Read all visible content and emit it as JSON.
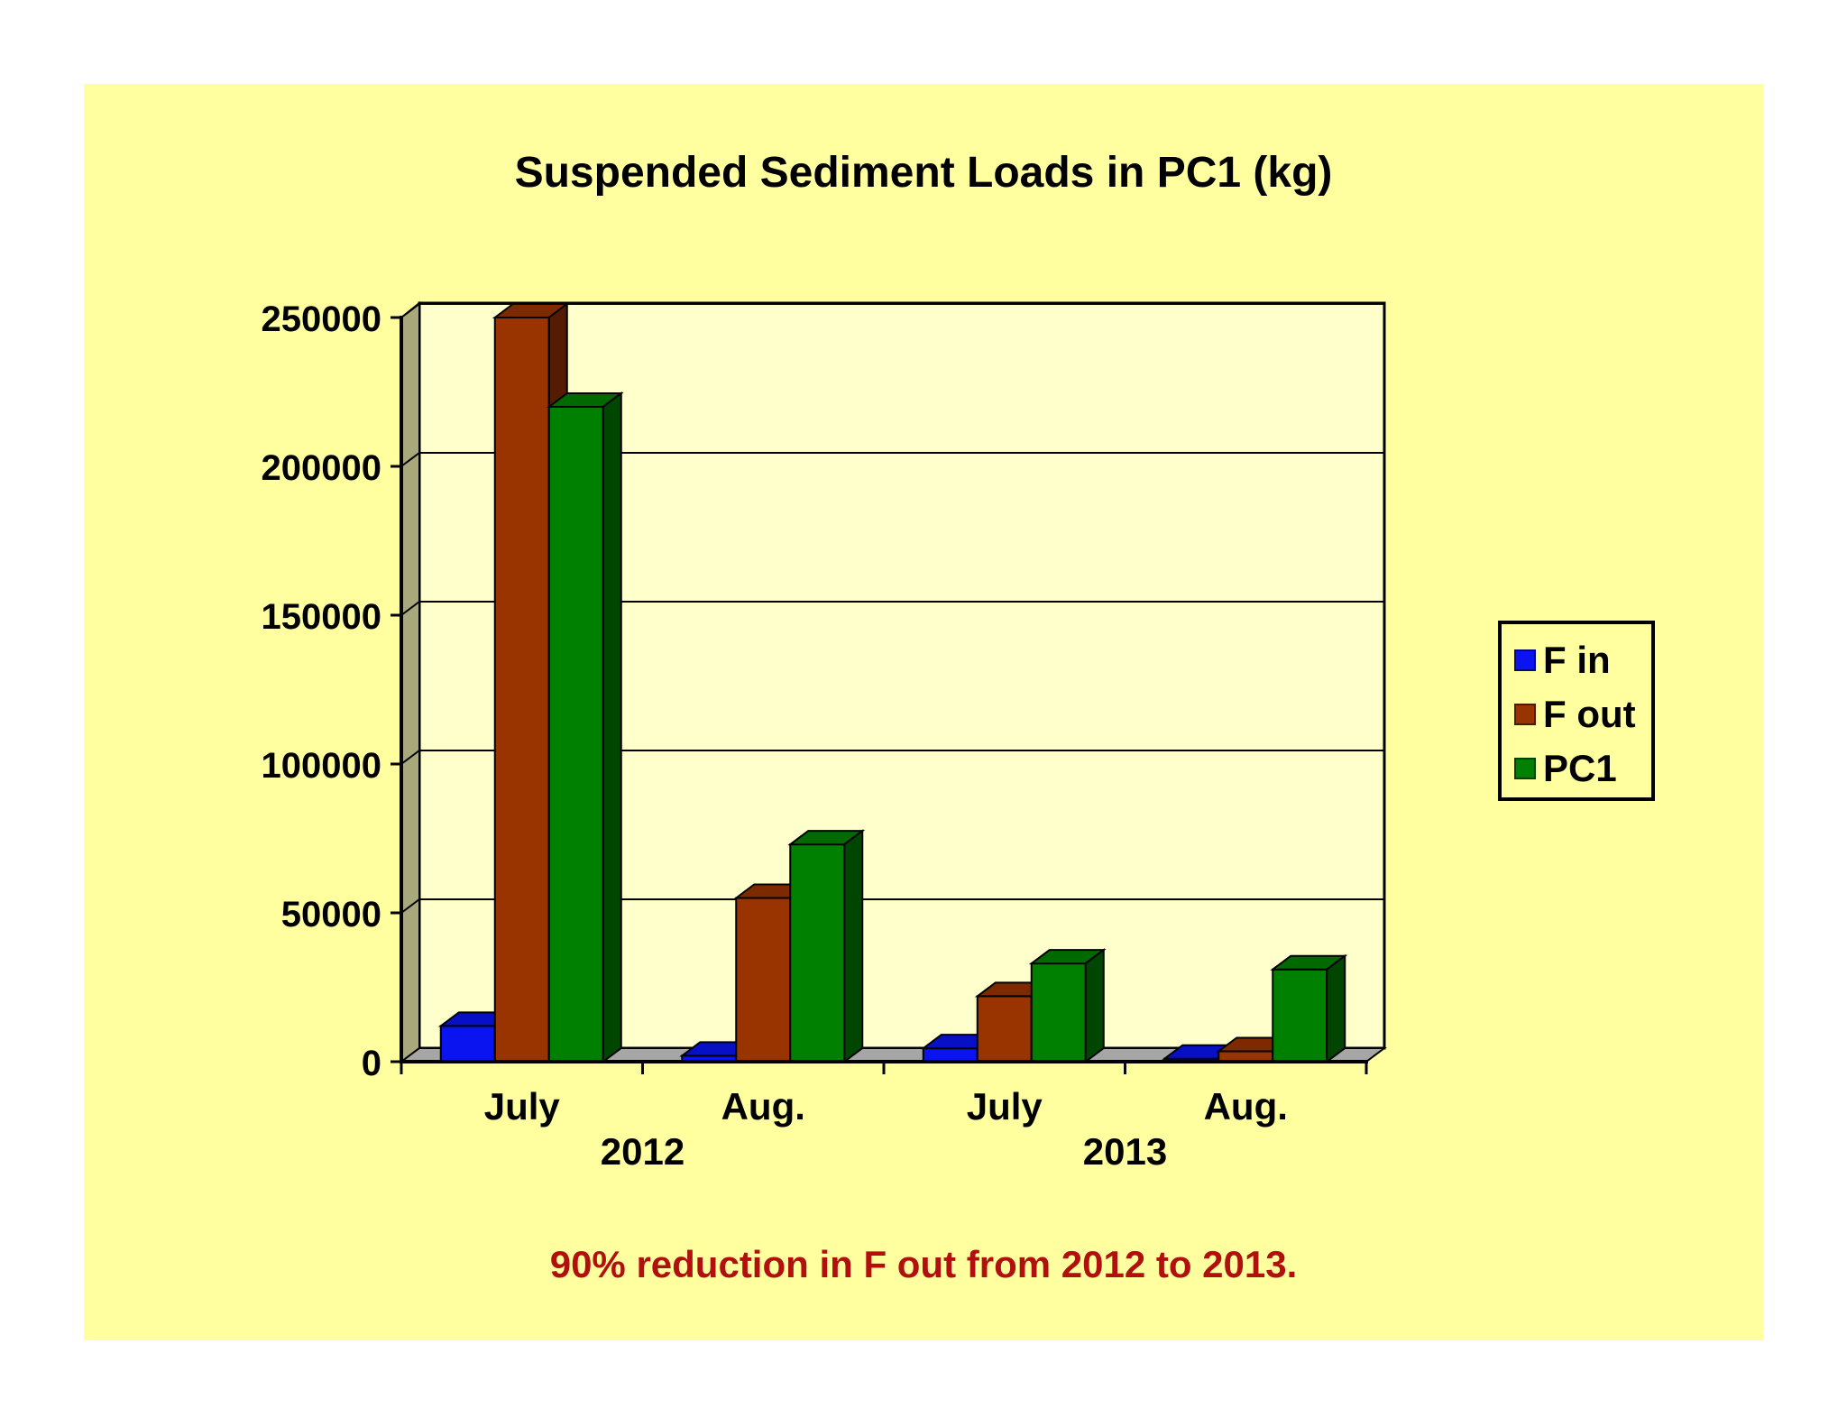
{
  "chart_data": {
    "type": "bar",
    "title": "Suspended Sediment Loads in PC1 (kg)",
    "categories": [
      "July",
      "Aug.",
      "July",
      "Aug."
    ],
    "category_groups": [
      {
        "label": "2012",
        "categories": [
          "July",
          "Aug."
        ]
      },
      {
        "label": "2013",
        "categories": [
          "July",
          "Aug."
        ]
      }
    ],
    "series": [
      {
        "name": "F in",
        "values": [
          12000,
          2000,
          4500,
          1000
        ],
        "color": "#0a14f0"
      },
      {
        "name": "F out",
        "values": [
          250000,
          55000,
          22000,
          3500
        ],
        "color": "#993300"
      },
      {
        "name": "PC1",
        "values": [
          220000,
          73000,
          33000,
          31000
        ],
        "color": "#008000"
      }
    ],
    "yticks": [
      0,
      50000,
      100000,
      150000,
      200000,
      250000
    ],
    "ylim": [
      0,
      250000
    ],
    "xlabel": "",
    "ylabel": "",
    "grid": true,
    "legend_position": "right",
    "chart_style": "3d-column",
    "annotation": "90% reduction in F out from 2012 to 2013.",
    "colors": {
      "panel_background": "#ffff9f",
      "plot_background": "#ffffcc",
      "annotation": "#b20f0f"
    }
  }
}
